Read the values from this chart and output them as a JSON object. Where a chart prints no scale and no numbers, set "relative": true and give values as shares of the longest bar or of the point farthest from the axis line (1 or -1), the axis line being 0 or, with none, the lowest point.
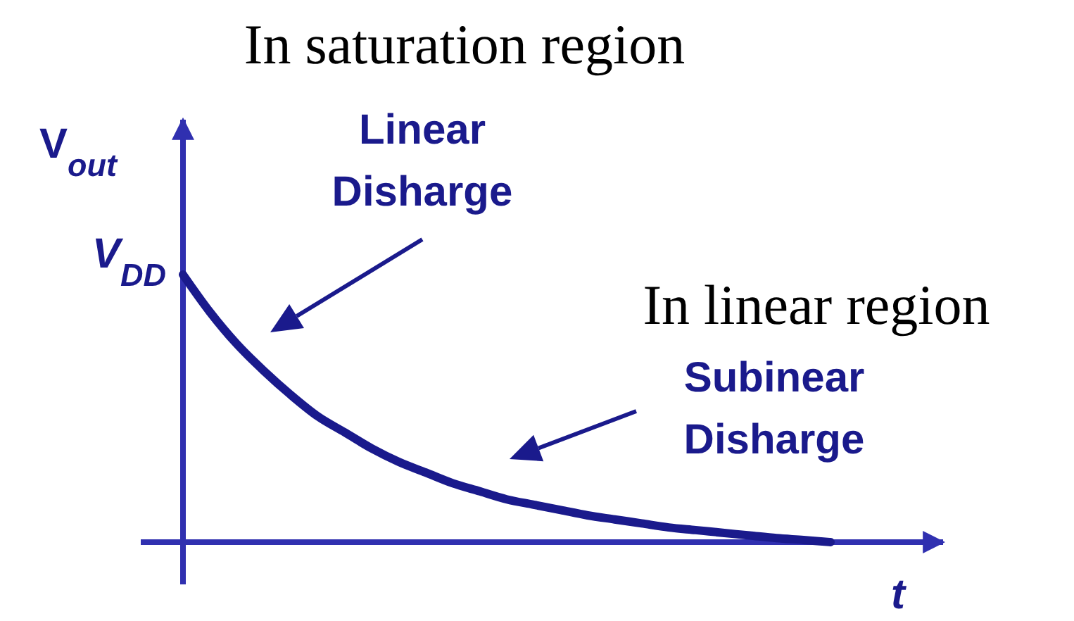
{
  "chart_data": {
    "type": "line",
    "relative": true,
    "title": "In saturation region",
    "ylabel": "V$_{out}$",
    "xlabel": "t",
    "categories": [
      null,
      null,
      null,
      null,
      null,
      null,
      null,
      null,
      null,
      null,
      null,
      null,
      null,
      null,
      null,
      null,
      null,
      null,
      null,
      null,
      null,
      null,
      null,
      null,
      null
    ],
    "series": [
      {
        "color": "#1a1a8c",
        "values": [
          1,
          0.86,
          0.74,
          0.64,
          0.55,
          0.47,
          0.41,
          0.35,
          0.3,
          0.26,
          0.22,
          0.19,
          0.16,
          0.14,
          0.12,
          0.1,
          0.085,
          0.07,
          0.055,
          0.045,
          0.035,
          0.025,
          0.015,
          0.008,
          0
        ]
      }
    ],
    "annotations": [
      "V$_{DD}$",
      "Linear\nDisharge",
      "Subinear\nDisharge",
      "In linear region"
    ]
  }
}
